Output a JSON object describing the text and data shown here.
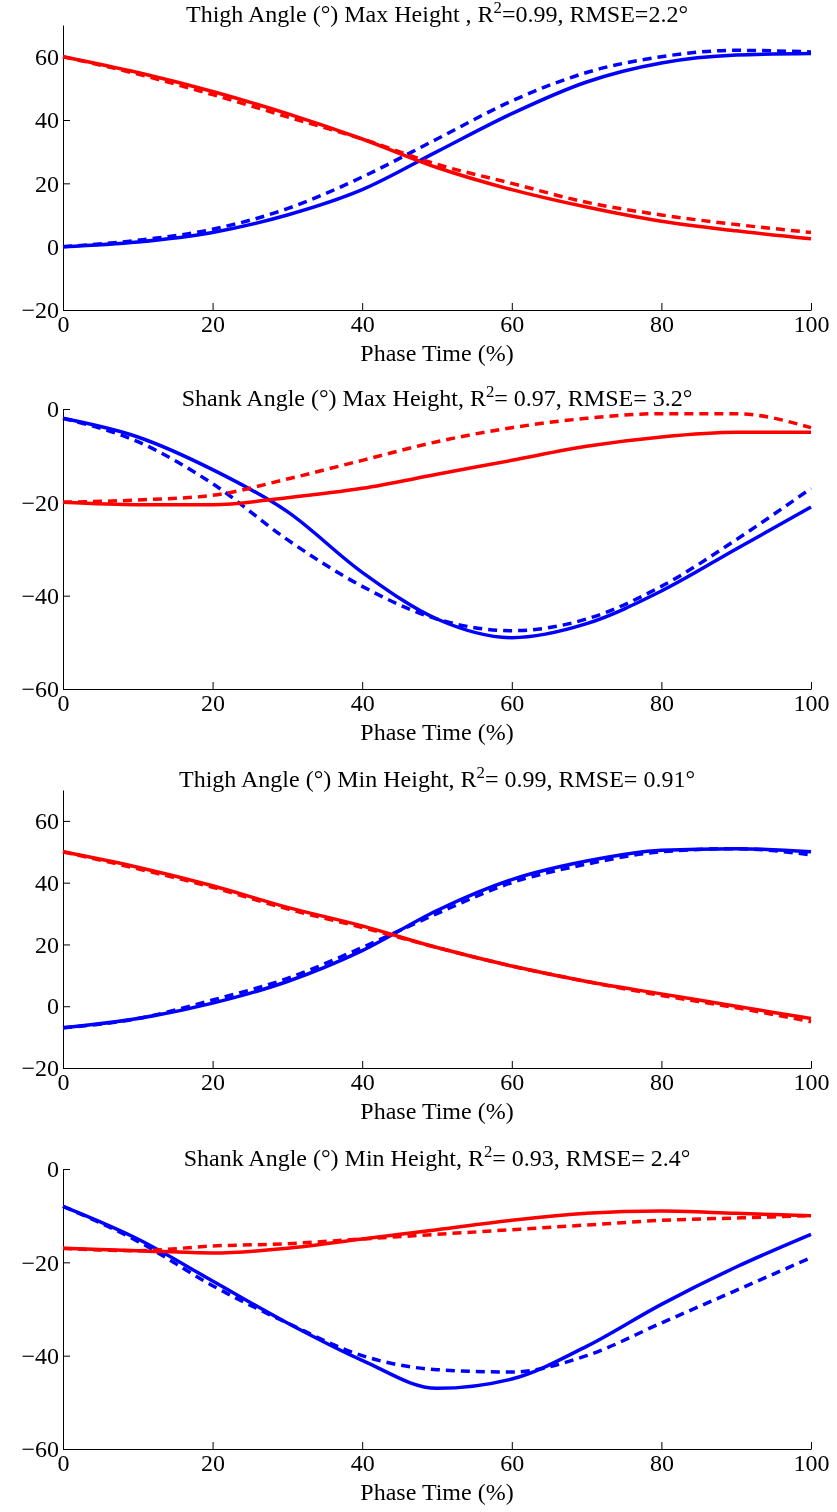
{
  "chart_data": [
    {
      "type": "line",
      "title": "Thigh Angle (°) Max Height , R$^{2}$=0.99, RMSE=2.2°",
      "xlabel": "Phase Time (%)",
      "xlim": [
        0,
        100
      ],
      "xticks": [
        0,
        20,
        40,
        60,
        80,
        100
      ],
      "ylim": [
        -20,
        70
      ],
      "yticks": [
        -20,
        0,
        20,
        40,
        60
      ],
      "x": [
        0,
        10,
        20,
        30,
        40,
        50,
        60,
        70,
        80,
        90,
        100
      ],
      "series": [
        {
          "color": "#0000ff",
          "line_style": "solid",
          "values": [
            0,
            1.5,
            4.5,
            10,
            18,
            30,
            42,
            52,
            58,
            60.5,
            61
          ]
        },
        {
          "color": "#0000ff",
          "line_style": "dashed",
          "values": [
            0,
            2,
            5.5,
            12,
            22,
            34,
            46,
            55,
            60,
            62,
            61.5
          ]
        },
        {
          "color": "#ff0000",
          "line_style": "solid",
          "values": [
            60,
            55,
            49,
            42,
            34,
            25,
            18,
            12.5,
            8,
            5,
            2.5
          ]
        },
        {
          "color": "#ff0000",
          "line_style": "dashed",
          "values": [
            60,
            54.5,
            48,
            41,
            34,
            26,
            20,
            14,
            10,
            7,
            4.5
          ]
        }
      ]
    },
    {
      "type": "line",
      "title": "Shank Angle (°) Max Height, R$^{2}$= 0.97, RMSE= 3.2°",
      "xlabel": "Phase Time (%)",
      "xlim": [
        0,
        100
      ],
      "xticks": [
        0,
        20,
        40,
        60,
        80,
        100
      ],
      "ylim": [
        -60,
        0
      ],
      "yticks": [
        -60,
        -40,
        -20,
        0
      ],
      "x": [
        0,
        10,
        20,
        30,
        40,
        50,
        60,
        70,
        80,
        90,
        100
      ],
      "series": [
        {
          "color": "#0000ff",
          "line_style": "solid",
          "values": [
            -2,
            -6,
            -13,
            -22,
            -35,
            -45,
            -49,
            -46,
            -39,
            -30,
            -21
          ]
        },
        {
          "color": "#0000ff",
          "line_style": "dashed",
          "values": [
            -2,
            -7,
            -16,
            -28,
            -38,
            -45,
            -47.5,
            -45,
            -38,
            -28,
            -17
          ]
        },
        {
          "color": "#ff0000",
          "line_style": "solid",
          "values": [
            -20,
            -20.5,
            -20.5,
            -19,
            -17,
            -14,
            -11,
            -8,
            -6,
            -5,
            -5
          ]
        },
        {
          "color": "#ff0000",
          "line_style": "dashed",
          "values": [
            -20,
            -19.5,
            -18.5,
            -15,
            -11,
            -7,
            -4,
            -2,
            -1,
            -1,
            -4
          ]
        }
      ]
    },
    {
      "type": "line",
      "title": "Thigh Angle (°) Min Height, R$^{2}$= 0.99, RMSE= 0.91°",
      "xlabel": "Phase Time (%)",
      "xlim": [
        0,
        100
      ],
      "xticks": [
        0,
        20,
        40,
        60,
        80,
        100
      ],
      "ylim": [
        -20,
        70
      ],
      "yticks": [
        -20,
        0,
        20,
        40,
        60
      ],
      "x": [
        0,
        10,
        20,
        30,
        40,
        50,
        60,
        70,
        80,
        90,
        100
      ],
      "series": [
        {
          "color": "#0000ff",
          "line_style": "solid",
          "values": [
            -7,
            -4,
            1,
            8,
            18,
            31,
            41,
            47,
            50.5,
            51,
            50
          ]
        },
        {
          "color": "#0000ff",
          "line_style": "dashed",
          "values": [
            -7,
            -4,
            2,
            9,
            19,
            30,
            40,
            46,
            50,
            51,
            49
          ]
        },
        {
          "color": "#ff0000",
          "line_style": "solid",
          "values": [
            50,
            45,
            39,
            32,
            26,
            19,
            13,
            8,
            4,
            0,
            -4
          ]
        },
        {
          "color": "#ff0000",
          "line_style": "dashed",
          "values": [
            50,
            44.5,
            38.5,
            31.5,
            25.5,
            19,
            13,
            8,
            3.5,
            -0.5,
            -5
          ]
        }
      ]
    },
    {
      "type": "line",
      "title": "Shank Angle (°) Min Height, R$^{2}$= 0.93, RMSE= 2.4°",
      "xlabel": "Phase Time (%)",
      "xlim": [
        0,
        100
      ],
      "xticks": [
        0,
        20,
        40,
        60,
        80,
        100
      ],
      "ylim": [
        -60,
        0
      ],
      "yticks": [
        -60,
        -40,
        -20,
        0
      ],
      "x": [
        0,
        10,
        20,
        30,
        40,
        50,
        60,
        70,
        80,
        90,
        100
      ],
      "series": [
        {
          "color": "#0000ff",
          "line_style": "solid",
          "values": [
            -8,
            -15,
            -24,
            -33,
            -41,
            -47,
            -45,
            -38,
            -29,
            -21,
            -14
          ]
        },
        {
          "color": "#0000ff",
          "line_style": "dashed",
          "values": [
            -8,
            -15.5,
            -25,
            -33,
            -40,
            -43,
            -43.5,
            -40,
            -33,
            -26,
            -19
          ]
        },
        {
          "color": "#ff0000",
          "line_style": "solid",
          "values": [
            -17,
            -17.5,
            -18,
            -17,
            -15,
            -13,
            -11,
            -9.5,
            -9,
            -9.5,
            -10
          ]
        },
        {
          "color": "#ff0000",
          "line_style": "dashed",
          "values": [
            -17,
            -17.5,
            -16.5,
            -16,
            -15,
            -14,
            -13,
            -12,
            -11,
            -10.5,
            -10
          ]
        }
      ]
    }
  ]
}
